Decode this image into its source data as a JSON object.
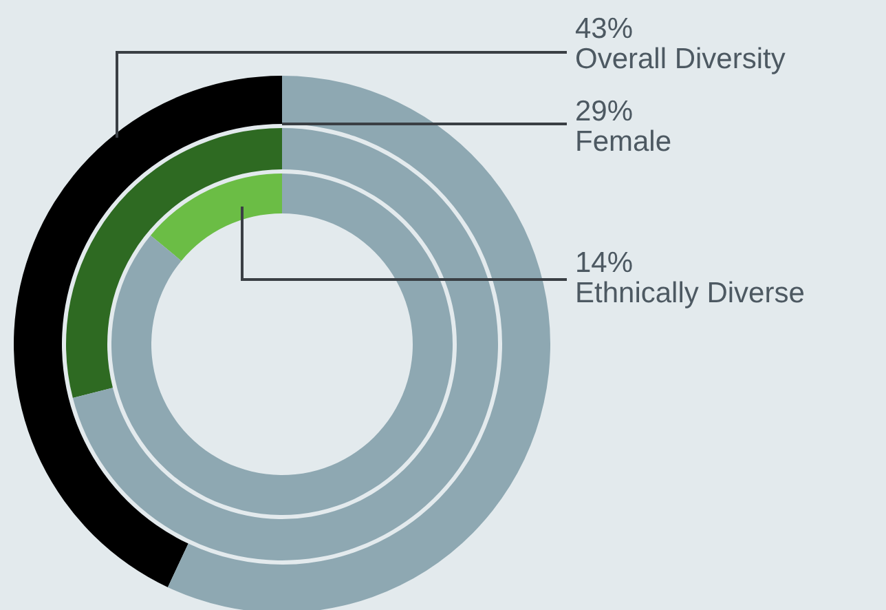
{
  "chart_data": [
    {
      "type": "donut",
      "categories": [
        "Overall Diversity",
        null
      ],
      "values": [
        43,
        57
      ],
      "colors": [
        "#000000",
        "#8ea8b2"
      ],
      "value_labels": [
        "43%",
        null
      ]
    },
    {
      "type": "donut",
      "categories": [
        "Female",
        null
      ],
      "values": [
        29,
        71
      ],
      "colors": [
        "#2e6a22",
        "#8ea8b2"
      ],
      "value_labels": [
        "29%",
        null
      ]
    },
    {
      "type": "donut",
      "categories": [
        "Ethnically Diverse",
        null
      ],
      "values": [
        14,
        86
      ],
      "colors": [
        "#6bbd45",
        "#8ea8b2"
      ],
      "value_labels": [
        "14%",
        null
      ]
    }
  ]
}
